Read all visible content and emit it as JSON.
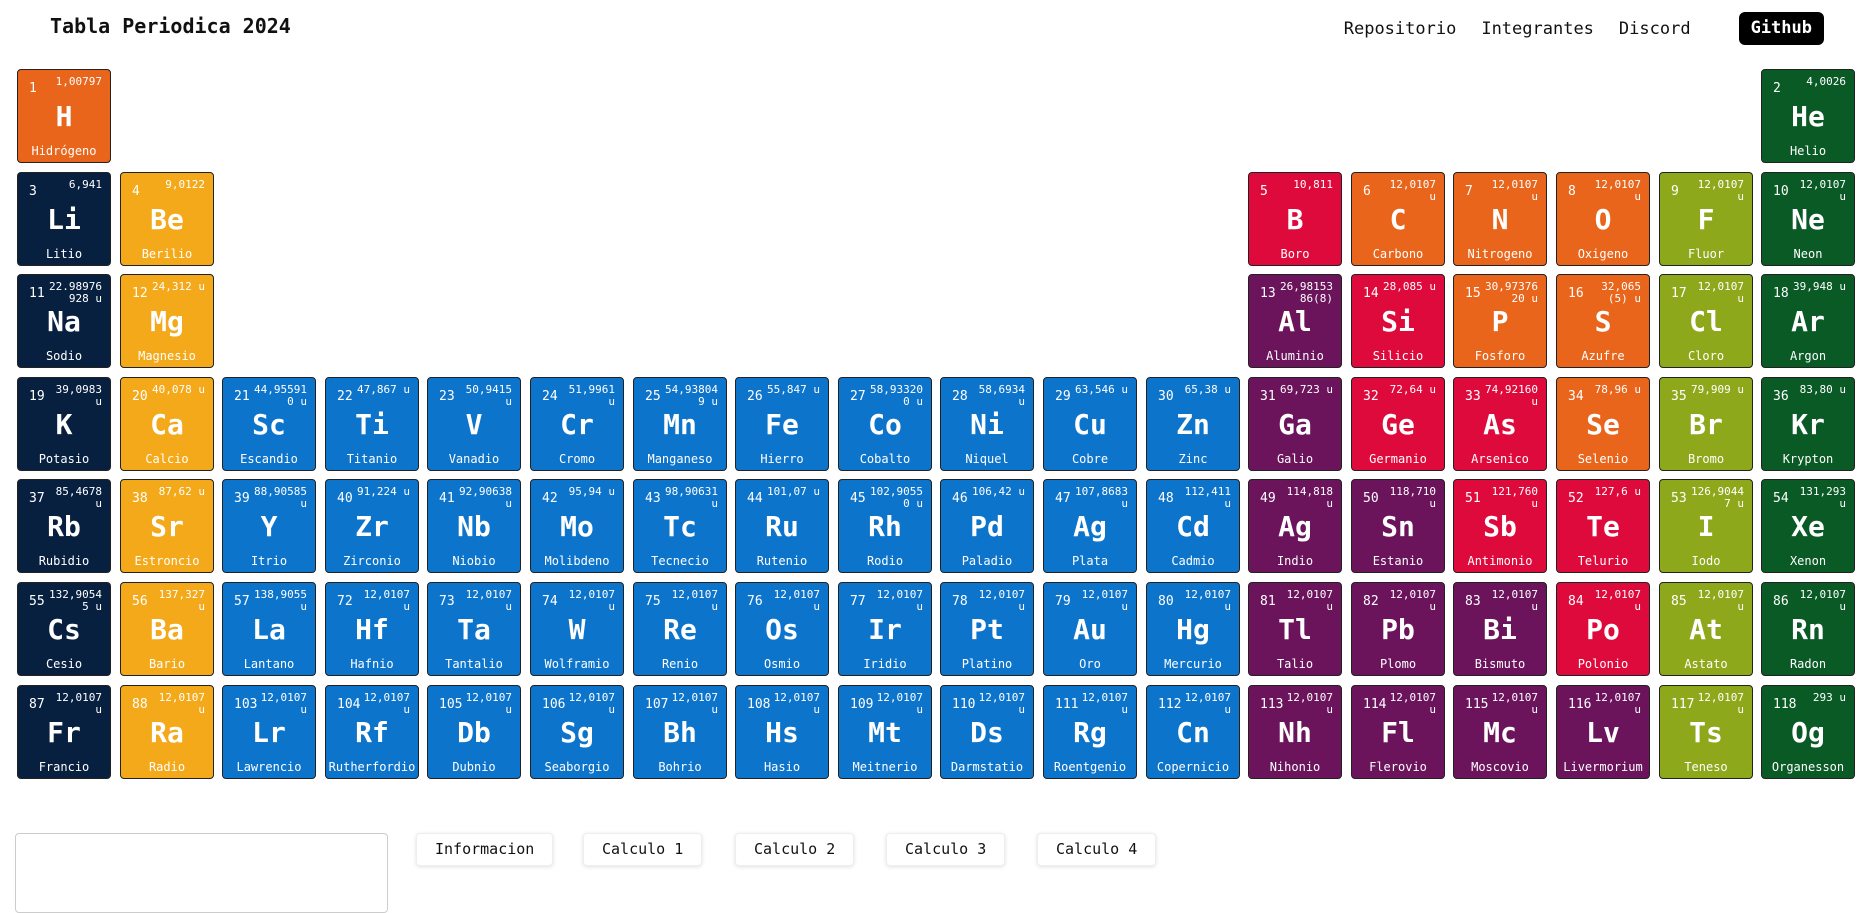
{
  "navbar": {
    "brand": "Tabla Periodica 2024",
    "links": [
      "Repositorio",
      "Integrantes",
      "Discord"
    ],
    "github_label": "Github"
  },
  "colors": {
    "hydrogen": "#e8651b",
    "alkali": "#082040",
    "alkaline_earth": "#f3a91a",
    "transition": "#0d74cc",
    "post_transition": "#6b145c",
    "metalloid": "#df0a3c",
    "nonmetal": "#e8651b",
    "halogen": "#8ea81c",
    "noble_gas": "#0a5a26"
  },
  "elements": [
    {
      "n": "1",
      "sym": "H",
      "name": "Hidrógeno",
      "mass": "1,00797",
      "col": 1,
      "row": 1,
      "cat": "hydrogen"
    },
    {
      "n": "2",
      "sym": "He",
      "name": "Helio",
      "mass": "4,0026",
      "col": 18,
      "row": 1,
      "cat": "noble_gas"
    },
    {
      "n": "3",
      "sym": "Li",
      "name": "Litio",
      "mass": "6,941",
      "col": 1,
      "row": 2,
      "cat": "alkali"
    },
    {
      "n": "4",
      "sym": "Be",
      "name": "Berilio",
      "mass": "9,0122",
      "col": 2,
      "row": 2,
      "cat": "alkaline_earth"
    },
    {
      "n": "5",
      "sym": "B",
      "name": "Boro",
      "mass": "10,811",
      "col": 13,
      "row": 2,
      "cat": "metalloid"
    },
    {
      "n": "6",
      "sym": "C",
      "name": "Carbono",
      "mass": "12,0107 u",
      "col": 14,
      "row": 2,
      "cat": "nonmetal"
    },
    {
      "n": "7",
      "sym": "N",
      "name": "Nitrogeno",
      "mass": "12,0107 u",
      "col": 15,
      "row": 2,
      "cat": "nonmetal"
    },
    {
      "n": "8",
      "sym": "O",
      "name": "Oxigeno",
      "mass": "12,0107 u",
      "col": 16,
      "row": 2,
      "cat": "nonmetal"
    },
    {
      "n": "9",
      "sym": "F",
      "name": "Fluor",
      "mass": "12,0107 u",
      "col": 17,
      "row": 2,
      "cat": "halogen"
    },
    {
      "n": "10",
      "sym": "Ne",
      "name": "Neon",
      "mass": "12,0107 u",
      "col": 18,
      "row": 2,
      "cat": "noble_gas"
    },
    {
      "n": "11",
      "sym": "Na",
      "name": "Sodio",
      "mass": "22.98976928 u",
      "col": 1,
      "row": 3,
      "cat": "alkali"
    },
    {
      "n": "12",
      "sym": "Mg",
      "name": "Magnesio",
      "mass": "24,312 u",
      "col": 2,
      "row": 3,
      "cat": "alkaline_earth"
    },
    {
      "n": "13",
      "sym": "Al",
      "name": "Aluminio",
      "mass": "26,9815386(8)",
      "col": 13,
      "row": 3,
      "cat": "post_transition"
    },
    {
      "n": "14",
      "sym": "Si",
      "name": "Silicio",
      "mass": "28,085 u",
      "col": 14,
      "row": 3,
      "cat": "metalloid"
    },
    {
      "n": "15",
      "sym": "P",
      "name": "Fosforo",
      "mass": "30,9737620 u",
      "col": 15,
      "row": 3,
      "cat": "nonmetal"
    },
    {
      "n": "16",
      "sym": "S",
      "name": "Azufre",
      "mass": "32,065(5) u",
      "col": 16,
      "row": 3,
      "cat": "nonmetal"
    },
    {
      "n": "17",
      "sym": "Cl",
      "name": "Cloro",
      "mass": "12,0107 u",
      "col": 17,
      "row": 3,
      "cat": "halogen"
    },
    {
      "n": "18",
      "sym": "Ar",
      "name": "Argon",
      "mass": "39,948 u",
      "col": 18,
      "row": 3,
      "cat": "noble_gas"
    },
    {
      "n": "19",
      "sym": "K",
      "name": "Potasio",
      "mass": "39,0983 u",
      "col": 1,
      "row": 4,
      "cat": "alkali"
    },
    {
      "n": "20",
      "sym": "Ca",
      "name": "Calcio",
      "mass": "40,078 u",
      "col": 2,
      "row": 4,
      "cat": "alkaline_earth"
    },
    {
      "n": "21",
      "sym": "Sc",
      "name": "Escandio",
      "mass": "44,955910 u",
      "col": 3,
      "row": 4,
      "cat": "transition"
    },
    {
      "n": "22",
      "sym": "Ti",
      "name": "Titanio",
      "mass": "47,867 u",
      "col": 4,
      "row": 4,
      "cat": "transition"
    },
    {
      "n": "23",
      "sym": "V",
      "name": "Vanadio",
      "mass": "50,9415 u",
      "col": 5,
      "row": 4,
      "cat": "transition"
    },
    {
      "n": "24",
      "sym": "Cr",
      "name": "Cromo",
      "mass": "51,9961 u",
      "col": 6,
      "row": 4,
      "cat": "transition"
    },
    {
      "n": "25",
      "sym": "Mn",
      "name": "Manganeso",
      "mass": "54,938049 u",
      "col": 7,
      "row": 4,
      "cat": "transition"
    },
    {
      "n": "26",
      "sym": "Fe",
      "name": "Hierro",
      "mass": "55,847 u",
      "col": 8,
      "row": 4,
      "cat": "transition"
    },
    {
      "n": "27",
      "sym": "Co",
      "name": "Cobalto",
      "mass": "58,933200 u",
      "col": 9,
      "row": 4,
      "cat": "transition"
    },
    {
      "n": "28",
      "sym": "Ni",
      "name": "Niquel",
      "mass": "58,6934 u",
      "col": 10,
      "row": 4,
      "cat": "transition"
    },
    {
      "n": "29",
      "sym": "Cu",
      "name": "Cobre",
      "mass": "63,546 u",
      "col": 11,
      "row": 4,
      "cat": "transition"
    },
    {
      "n": "30",
      "sym": "Zn",
      "name": "Zinc",
      "mass": "65,38 u",
      "col": 12,
      "row": 4,
      "cat": "transition"
    },
    {
      "n": "31",
      "sym": "Ga",
      "name": "Galio",
      "mass": "69,723 u",
      "col": 13,
      "row": 4,
      "cat": "post_transition"
    },
    {
      "n": "32",
      "sym": "Ge",
      "name": "Germanio",
      "mass": "72,64 u",
      "col": 14,
      "row": 4,
      "cat": "metalloid"
    },
    {
      "n": "33",
      "sym": "As",
      "name": "Arsenico",
      "mass": "74,92160 u",
      "col": 15,
      "row": 4,
      "cat": "metalloid"
    },
    {
      "n": "34",
      "sym": "Se",
      "name": "Selenio",
      "mass": "78,96 u",
      "col": 16,
      "row": 4,
      "cat": "nonmetal"
    },
    {
      "n": "35",
      "sym": "Br",
      "name": "Bromo",
      "mass": "79,909 u",
      "col": 17,
      "row": 4,
      "cat": "halogen"
    },
    {
      "n": "36",
      "sym": "Kr",
      "name": "Krypton",
      "mass": "83,80 u",
      "col": 18,
      "row": 4,
      "cat": "noble_gas"
    },
    {
      "n": "37",
      "sym": "Rb",
      "name": "Rubidio",
      "mass": "85,4678 u",
      "col": 1,
      "row": 5,
      "cat": "alkali"
    },
    {
      "n": "38",
      "sym": "Sr",
      "name": "Estroncio",
      "mass": "87,62 u",
      "col": 2,
      "row": 5,
      "cat": "alkaline_earth"
    },
    {
      "n": "39",
      "sym": "Y",
      "name": "Itrio",
      "mass": "88,90585 u",
      "col": 3,
      "row": 5,
      "cat": "transition"
    },
    {
      "n": "40",
      "sym": "Zr",
      "name": "Zirconio",
      "mass": "91,224 u",
      "col": 4,
      "row": 5,
      "cat": "transition"
    },
    {
      "n": "41",
      "sym": "Nb",
      "name": "Niobio",
      "mass": "92,90638 u",
      "col": 5,
      "row": 5,
      "cat": "transition"
    },
    {
      "n": "42",
      "sym": "Mo",
      "name": "Molibdeno",
      "mass": "95,94 u",
      "col": 6,
      "row": 5,
      "cat": "transition"
    },
    {
      "n": "43",
      "sym": "Tc",
      "name": "Tecnecio",
      "mass": "98,90631 u",
      "col": 7,
      "row": 5,
      "cat": "transition"
    },
    {
      "n": "44",
      "sym": "Ru",
      "name": "Rutenio",
      "mass": "101,07 u",
      "col": 8,
      "row": 5,
      "cat": "transition"
    },
    {
      "n": "45",
      "sym": "Rh",
      "name": "Rodio",
      "mass": "102,90550 u",
      "col": 9,
      "row": 5,
      "cat": "transition"
    },
    {
      "n": "46",
      "sym": "Pd",
      "name": "Paladio",
      "mass": "106,42 u",
      "col": 10,
      "row": 5,
      "cat": "transition"
    },
    {
      "n": "47",
      "sym": "Ag",
      "name": "Plata",
      "mass": "107,8683 u",
      "col": 11,
      "row": 5,
      "cat": "transition"
    },
    {
      "n": "48",
      "sym": "Cd",
      "name": "Cadmio",
      "mass": "112,411 u",
      "col": 12,
      "row": 5,
      "cat": "transition"
    },
    {
      "n": "49",
      "sym": "Ag",
      "name": "Indio",
      "mass": "114,818 u",
      "col": 13,
      "row": 5,
      "cat": "post_transition"
    },
    {
      "n": "50",
      "sym": "Sn",
      "name": "Estanio",
      "mass": "118,710 u",
      "col": 14,
      "row": 5,
      "cat": "post_transition"
    },
    {
      "n": "51",
      "sym": "Sb",
      "name": "Antimonio",
      "mass": "121,760 u",
      "col": 15,
      "row": 5,
      "cat": "metalloid"
    },
    {
      "n": "52",
      "sym": "Te",
      "name": "Telurio",
      "mass": "127,6 u",
      "col": 16,
      "row": 5,
      "cat": "metalloid"
    },
    {
      "n": "53",
      "sym": "I",
      "name": "Iodo",
      "mass": "126,90447 u",
      "col": 17,
      "row": 5,
      "cat": "halogen"
    },
    {
      "n": "54",
      "sym": "Xe",
      "name": "Xenon",
      "mass": "131,293 u",
      "col": 18,
      "row": 5,
      "cat": "noble_gas"
    },
    {
      "n": "55",
      "sym": "Cs",
      "name": "Cesio",
      "mass": "132,90545 u",
      "col": 1,
      "row": 6,
      "cat": "alkali"
    },
    {
      "n": "56",
      "sym": "Ba",
      "name": "Bario",
      "mass": "137,327 u",
      "col": 2,
      "row": 6,
      "cat": "alkaline_earth"
    },
    {
      "n": "57",
      "sym": "La",
      "name": "Lantano",
      "mass": "138,9055 u",
      "col": 3,
      "row": 6,
      "cat": "transition"
    },
    {
      "n": "72",
      "sym": "Hf",
      "name": "Hafnio",
      "mass": "12,0107 u",
      "col": 4,
      "row": 6,
      "cat": "transition"
    },
    {
      "n": "73",
      "sym": "Ta",
      "name": "Tantalio",
      "mass": "12,0107 u",
      "col": 5,
      "row": 6,
      "cat": "transition"
    },
    {
      "n": "74",
      "sym": "W",
      "name": "Wolframio",
      "mass": "12,0107 u",
      "col": 6,
      "row": 6,
      "cat": "transition"
    },
    {
      "n": "75",
      "sym": "Re",
      "name": "Renio",
      "mass": "12,0107 u",
      "col": 7,
      "row": 6,
      "cat": "transition"
    },
    {
      "n": "76",
      "sym": "Os",
      "name": "Osmio",
      "mass": "12,0107 u",
      "col": 8,
      "row": 6,
      "cat": "transition"
    },
    {
      "n": "77",
      "sym": "Ir",
      "name": "Iridio",
      "mass": "12,0107 u",
      "col": 9,
      "row": 6,
      "cat": "transition"
    },
    {
      "n": "78",
      "sym": "Pt",
      "name": "Platino",
      "mass": "12,0107 u",
      "col": 10,
      "row": 6,
      "cat": "transition"
    },
    {
      "n": "79",
      "sym": "Au",
      "name": "Oro",
      "mass": "12,0107 u",
      "col": 11,
      "row": 6,
      "cat": "transition"
    },
    {
      "n": "80",
      "sym": "Hg",
      "name": "Mercurio",
      "mass": "12,0107 u",
      "col": 12,
      "row": 6,
      "cat": "transition"
    },
    {
      "n": "81",
      "sym": "Tl",
      "name": "Talio",
      "mass": "12,0107 u",
      "col": 13,
      "row": 6,
      "cat": "post_transition"
    },
    {
      "n": "82",
      "sym": "Pb",
      "name": "Plomo",
      "mass": "12,0107 u",
      "col": 14,
      "row": 6,
      "cat": "post_transition"
    },
    {
      "n": "83",
      "sym": "Bi",
      "name": "Bismuto",
      "mass": "12,0107 u",
      "col": 15,
      "row": 6,
      "cat": "post_transition"
    },
    {
      "n": "84",
      "sym": "Po",
      "name": "Polonio",
      "mass": "12,0107 u",
      "col": 16,
      "row": 6,
      "cat": "metalloid"
    },
    {
      "n": "85",
      "sym": "At",
      "name": "Astato",
      "mass": "12,0107 u",
      "col": 17,
      "row": 6,
      "cat": "halogen"
    },
    {
      "n": "86",
      "sym": "Rn",
      "name": "Radon",
      "mass": "12,0107 u",
      "col": 18,
      "row": 6,
      "cat": "noble_gas"
    },
    {
      "n": "87",
      "sym": "Fr",
      "name": "Francio",
      "mass": "12,0107 u",
      "col": 1,
      "row": 7,
      "cat": "alkali"
    },
    {
      "n": "88",
      "sym": "Ra",
      "name": "Radio",
      "mass": "12,0107 u",
      "col": 2,
      "row": 7,
      "cat": "alkaline_earth"
    },
    {
      "n": "103",
      "sym": "Lr",
      "name": "Lawrencio",
      "mass": "12,0107 u",
      "col": 3,
      "row": 7,
      "cat": "transition"
    },
    {
      "n": "104",
      "sym": "Rf",
      "name": "Rutherfordio",
      "mass": "12,0107 u",
      "col": 4,
      "row": 7,
      "cat": "transition"
    },
    {
      "n": "105",
      "sym": "Db",
      "name": "Dubnio",
      "mass": "12,0107 u",
      "col": 5,
      "row": 7,
      "cat": "transition"
    },
    {
      "n": "106",
      "sym": "Sg",
      "name": "Seaborgio",
      "mass": "12,0107 u",
      "col": 6,
      "row": 7,
      "cat": "transition"
    },
    {
      "n": "107",
      "sym": "Bh",
      "name": "Bohrio",
      "mass": "12,0107 u",
      "col": 7,
      "row": 7,
      "cat": "transition"
    },
    {
      "n": "108",
      "sym": "Hs",
      "name": "Hasio",
      "mass": "12,0107 u",
      "col": 8,
      "row": 7,
      "cat": "transition"
    },
    {
      "n": "109",
      "sym": "Mt",
      "name": "Meitnerio",
      "mass": "12,0107 u",
      "col": 9,
      "row": 7,
      "cat": "transition"
    },
    {
      "n": "110",
      "sym": "Ds",
      "name": "Darmstatio",
      "mass": "12,0107 u",
      "col": 10,
      "row": 7,
      "cat": "transition"
    },
    {
      "n": "111",
      "sym": "Rg",
      "name": "Roentgenio",
      "mass": "12,0107 u",
      "col": 11,
      "row": 7,
      "cat": "transition"
    },
    {
      "n": "112",
      "sym": "Cn",
      "name": "Copernicio",
      "mass": "12,0107 u",
      "col": 12,
      "row": 7,
      "cat": "transition"
    },
    {
      "n": "113",
      "sym": "Nh",
      "name": "Nihonio",
      "mass": "12,0107 u",
      "col": 13,
      "row": 7,
      "cat": "post_transition"
    },
    {
      "n": "114",
      "sym": "Fl",
      "name": "Flerovio",
      "mass": "12,0107 u",
      "col": 14,
      "row": 7,
      "cat": "post_transition"
    },
    {
      "n": "115",
      "sym": "Mc",
      "name": "Moscovio",
      "mass": "12,0107 u",
      "col": 15,
      "row": 7,
      "cat": "post_transition"
    },
    {
      "n": "116",
      "sym": "Lv",
      "name": "Livermorium",
      "mass": "12,0107 u",
      "col": 16,
      "row": 7,
      "cat": "post_transition"
    },
    {
      "n": "117",
      "sym": "Ts",
      "name": "Teneso",
      "mass": "12,0107 u",
      "col": 17,
      "row": 7,
      "cat": "halogen"
    },
    {
      "n": "118",
      "sym": "Og",
      "name": "Organesson",
      "mass": "293 u",
      "col": 18,
      "row": 7,
      "cat": "noble_gas"
    }
  ],
  "bottom": {
    "tabs": [
      "Informacion",
      "Calculo 1",
      "Calculo 2",
      "Calculo 3",
      "Calculo 4"
    ]
  }
}
